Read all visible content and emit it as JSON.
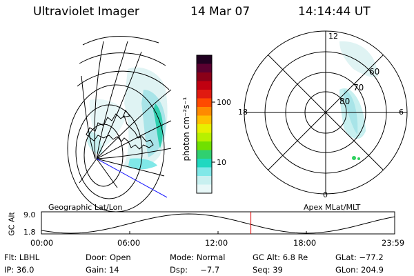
{
  "header": {
    "instrument": "Ultraviolet Imager",
    "date": "14 Mar 07",
    "time": "14:14:44 UT"
  },
  "colorbar": {
    "unit_label": "photon cm⁻²s⁻¹",
    "ticks": [
      "100",
      "10"
    ],
    "colors": [
      "#200020",
      "#5a0030",
      "#8a0018",
      "#c00010",
      "#e01a10",
      "#ff4a00",
      "#ff8a00",
      "#ffc000",
      "#e8f000",
      "#b8f000",
      "#70e000",
      "#30d070",
      "#20d8c0",
      "#80e8e8",
      "#c8f0f0",
      "#e8f8f8"
    ]
  },
  "left_map": {
    "label": "Geographic Lat/Lon"
  },
  "polar_plot": {
    "label": "Apex MLat/MLT",
    "mlt_labels": {
      "top": "12",
      "bottom": "0",
      "left": "18",
      "right": "6"
    },
    "lat_labels": [
      "60",
      "70",
      "80"
    ]
  },
  "altitude_plot": {
    "ylabel": "GC Alt",
    "ytick_top": "9.0",
    "ytick_bottom": "1.8",
    "xticks": [
      "00:00",
      "06:00",
      "12:00",
      "18:00",
      "23:59"
    ],
    "current_marker_time": "14:14",
    "marker_color": "#e00000"
  },
  "info_grid": [
    [
      "Flt: LBHL",
      "Door: Open",
      "Mode: Normal",
      "GC Alt: 6.8 Re",
      "GLat: −77.2"
    ],
    [
      "IP: 36.0",
      "Gain: 14",
      "Dsp:     −7.7",
      "Seq: 39",
      "GLon: 204.9"
    ]
  ]
}
